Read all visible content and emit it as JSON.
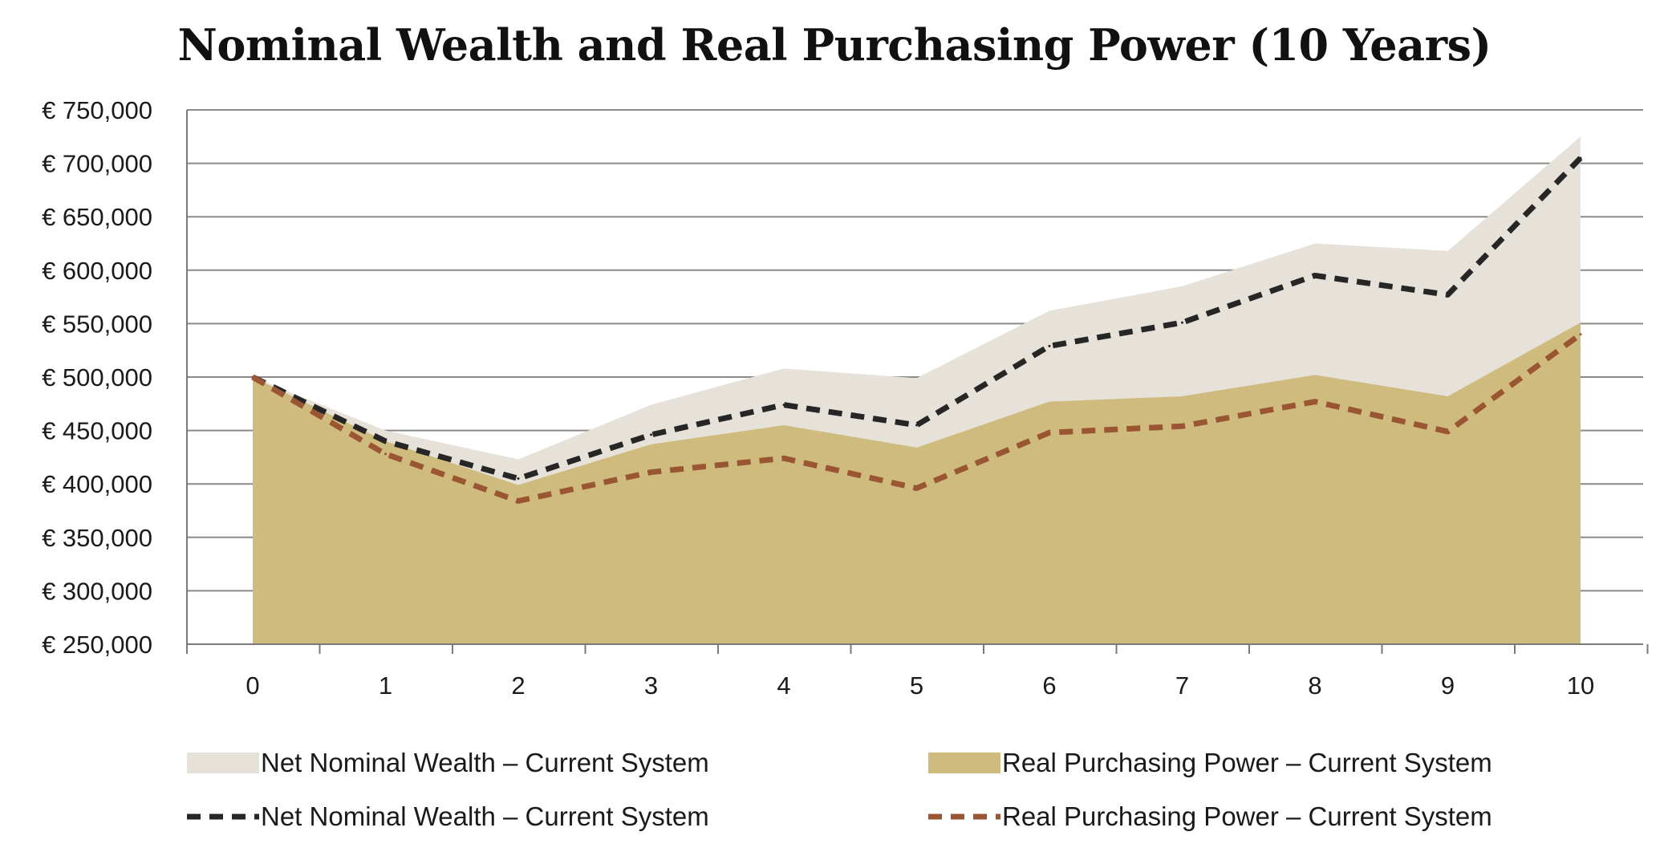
{
  "chart_data": {
    "type": "area",
    "title": "Nominal Wealth and Real Purchasing Power (10 Years)",
    "xlabel": "",
    "ylabel": "",
    "x": [
      0,
      1,
      2,
      3,
      4,
      5,
      6,
      7,
      8,
      9,
      10
    ],
    "x_tick_labels": [
      "0",
      "1",
      "2",
      "3",
      "4",
      "5",
      "6",
      "7",
      "8",
      "9",
      "10"
    ],
    "ylim": [
      250000,
      750000
    ],
    "y_ticks": [
      250000,
      300000,
      350000,
      400000,
      450000,
      500000,
      550000,
      600000,
      650000,
      700000,
      750000
    ],
    "y_tick_labels": [
      "€ 250,000",
      "€ 300,000",
      "€ 350,000",
      "€ 400,000",
      "€ 450,000",
      "€ 500,000",
      "€ 550,000",
      "€ 600,000",
      "€ 650,000",
      "€ 700,000",
      "€ 750,000"
    ],
    "grid": true,
    "legend_position": "bottom",
    "series": [
      {
        "name": "Net Nominal Wealth – Current System",
        "kind": "area",
        "color": "#e6e2da",
        "values": [
          500000,
          450000,
          423000,
          474000,
          508000,
          499000,
          562000,
          585000,
          625000,
          618000,
          725000
        ]
      },
      {
        "name": "Real Purchasing Power – Current System",
        "kind": "area",
        "color": "#cfbb7d",
        "values": [
          500000,
          440000,
          399000,
          437000,
          455000,
          434000,
          477000,
          482000,
          502000,
          482000,
          551000
        ]
      },
      {
        "name": "Net Nominal Wealth – Current System",
        "kind": "dashed-line",
        "color": "#262626",
        "values": [
          500000,
          440000,
          405000,
          446000,
          474000,
          455000,
          529000,
          551000,
          595000,
          577000,
          705000
        ]
      },
      {
        "name": "Real Purchasing Power – Current System",
        "kind": "dashed-line",
        "color": "#9a5533",
        "values": [
          500000,
          428000,
          384000,
          411000,
          424000,
          396000,
          448000,
          454000,
          477000,
          449000,
          540000
        ]
      }
    ]
  }
}
